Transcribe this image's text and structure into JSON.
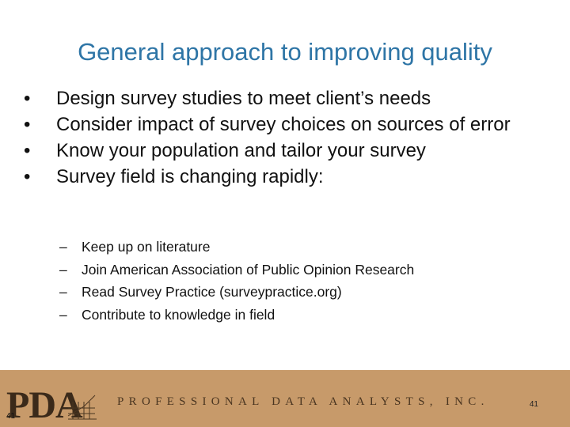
{
  "slide": {
    "title": "General approach to improving quality",
    "bullets": [
      "Design survey studies to meet client’s needs",
      "Consider impact of survey choices on sources of error",
      "Know your population and tailor your survey",
      "Survey field is changing rapidly:"
    ],
    "bullet_marker": "•",
    "sub_marker": "–",
    "sub_bullets": [
      "Keep up on literature",
      "Join American Association of Public Opinion Research",
      "Read Survey Practice (surveypractice.org)",
      "Contribute to knowledge in field"
    ]
  },
  "footer": {
    "logo_text": "PDA",
    "company_name": "PROFESSIONAL DATA ANALYSTS, INC.",
    "page_number": "41",
    "logo_page_number": "41",
    "band_color": "#c79a6a"
  },
  "colors": {
    "title": "#2e75a6",
    "text": "#111111",
    "logo": "#3b2a1a"
  }
}
